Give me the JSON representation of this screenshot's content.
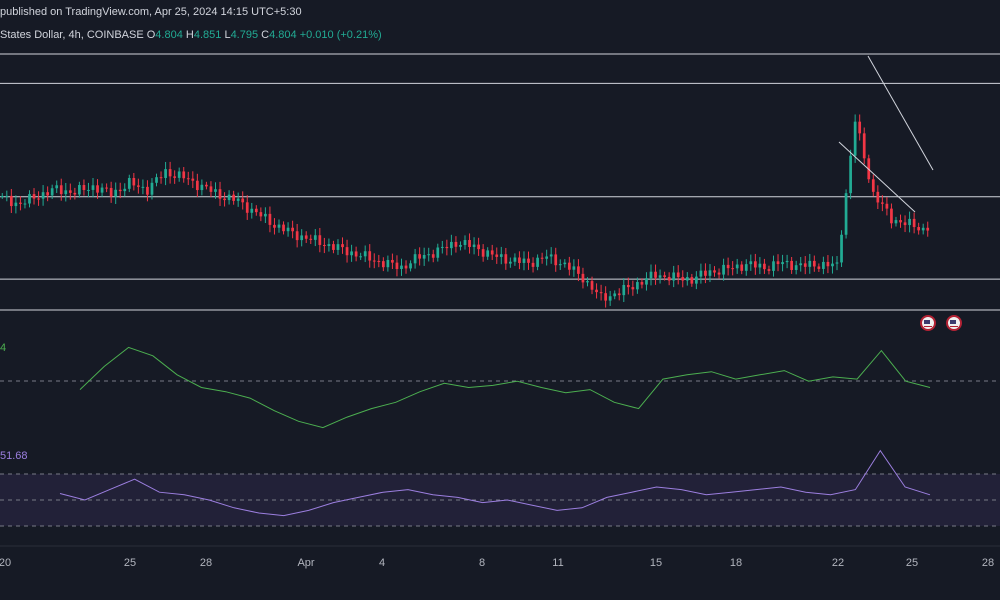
{
  "header": {
    "published": "published on TradingView.com, Apr 25, 2024 14:15 UTC+5:30",
    "symbol": "States Dollar, 4h, COINBASE",
    "o_label": "O",
    "o_value": "4.804",
    "h_label": "H",
    "h_value": "4.851",
    "l_label": "L",
    "l_value": "4.795",
    "c_label": "C",
    "c_value": "4.804",
    "change": "+0.010 (+0.21%)"
  },
  "indicators": {
    "macd_value": "4",
    "rsi_value": "51.68"
  },
  "icons": [
    "us-flag-icon",
    "us-flag-icon"
  ],
  "colors": {
    "background": "#161a25",
    "bull": "#22ab94",
    "bear": "#f23645",
    "oscillator": "#4caf50",
    "rsi": "#9c7fe0",
    "levels": "#d1d4dc"
  },
  "chart_data": {
    "type": "candlestick",
    "timeframe": "4h",
    "x_ticks": [
      "20",
      "25",
      "28",
      "Apr",
      "4",
      "8",
      "11",
      "15",
      "18",
      "22",
      "25",
      "28"
    ],
    "price_series": [
      5.02,
      4.98,
      5.04,
      5.08,
      5.06,
      5.1,
      5.05,
      5.12,
      5.08,
      5.2,
      5.16,
      5.1,
      5.04,
      5.0,
      4.92,
      4.84,
      4.78,
      4.74,
      4.7,
      4.66,
      4.62,
      4.58,
      4.55,
      4.62,
      4.66,
      4.72,
      4.69,
      4.63,
      4.6,
      4.58,
      4.62,
      4.57,
      4.48,
      4.34,
      4.38,
      4.44,
      4.5,
      4.48,
      4.47,
      4.52,
      4.54,
      4.57,
      4.55,
      4.58,
      4.56,
      4.57,
      4.56,
      5.55,
      5.05,
      4.88,
      4.84,
      4.8
    ],
    "levels": [
      6.0,
      5.8,
      5.03,
      4.47,
      4.26
    ],
    "macd_line": [
      -0.02,
      0.2,
      0.38,
      0.3,
      0.12,
      0.0,
      -0.04,
      -0.1,
      -0.22,
      -0.32,
      -0.38,
      -0.28,
      -0.2,
      -0.14,
      -0.04,
      0.04,
      0.0,
      0.02,
      0.06,
      0.0,
      -0.05,
      -0.02,
      -0.14,
      -0.2,
      0.08,
      0.12,
      0.15,
      0.08,
      0.12,
      0.16,
      0.06,
      0.1,
      0.08,
      0.35,
      0.06,
      0.0
    ],
    "rsi_line": [
      55,
      50,
      58,
      66,
      56,
      54,
      50,
      44,
      40,
      38,
      42,
      48,
      52,
      56,
      58,
      54,
      52,
      48,
      50,
      46,
      42,
      44,
      52,
      56,
      60,
      58,
      54,
      56,
      58,
      60,
      56,
      54,
      58,
      88,
      60,
      54
    ]
  }
}
